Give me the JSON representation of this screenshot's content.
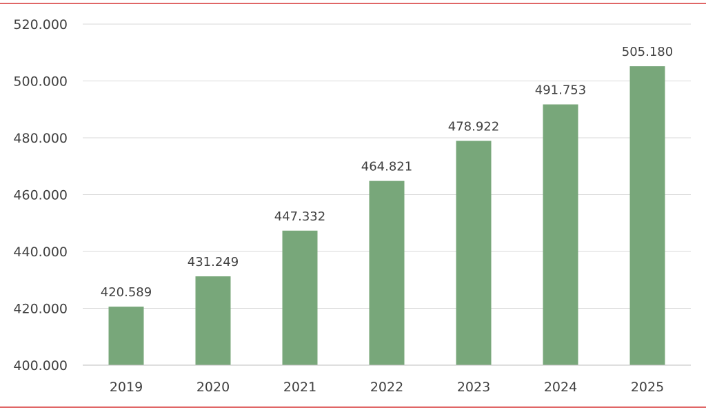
{
  "colors": {
    "bar": "#78a77a",
    "grid": "#d9d9d9",
    "axis": "#bfbfbf",
    "text": "#404040",
    "frame_rule": "#e06666"
  },
  "chart_data": {
    "type": "bar",
    "title": "",
    "xlabel": "",
    "ylabel": "",
    "categories": [
      "2019",
      "2020",
      "2021",
      "2022",
      "2023",
      "2024",
      "2025"
    ],
    "values": [
      420589,
      431249,
      447332,
      464821,
      478922,
      491753,
      505180
    ],
    "value_labels": [
      "420.589",
      "431.249",
      "447.332",
      "464.821",
      "478.922",
      "491.753",
      "505.180"
    ],
    "ylim": [
      400000,
      520000
    ],
    "yticks": [
      400000,
      420000,
      440000,
      460000,
      480000,
      500000,
      520000
    ],
    "ytick_labels": [
      "400.000",
      "420.000",
      "440.000",
      "460.000",
      "480.000",
      "500.000",
      "520.000"
    ],
    "grid": true,
    "legend": "none"
  }
}
